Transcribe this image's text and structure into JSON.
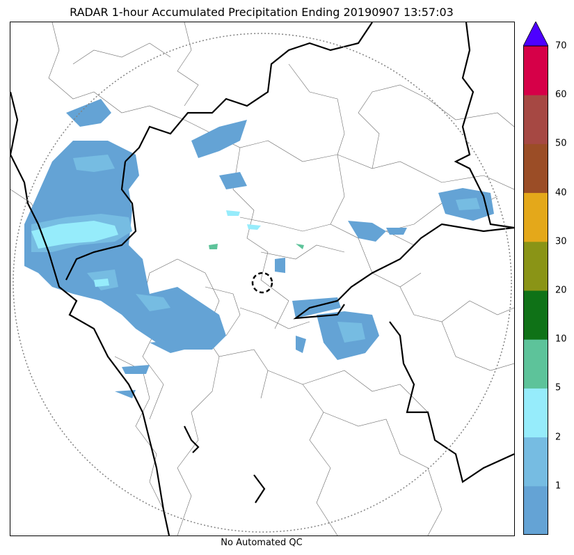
{
  "title": "RADAR 1-hour Accumulated Precipitation Ending 20190907 13:57:03",
  "footer": "No Automated QC",
  "colorbar": {
    "tick_labels": [
      "1",
      "2",
      "5",
      "10",
      "20",
      "30",
      "40",
      "50",
      "60",
      "70"
    ],
    "colors": [
      "#64a3d5",
      "#76bce2",
      "#96ecfb",
      "#5dc39a",
      "#0f7217",
      "#8a9416",
      "#e4a81a",
      "#9b4d26",
      "#a64843",
      "#d60048"
    ],
    "extend_color": "#4d00ff"
  },
  "map": {
    "range_ring": "dotted",
    "center_marker": "dashed-circle",
    "precip_colors": {
      "light": "#64a3d5",
      "medium": "#76bce2",
      "heavy": "#96ecfb",
      "teal": "#5dc39a"
    }
  }
}
